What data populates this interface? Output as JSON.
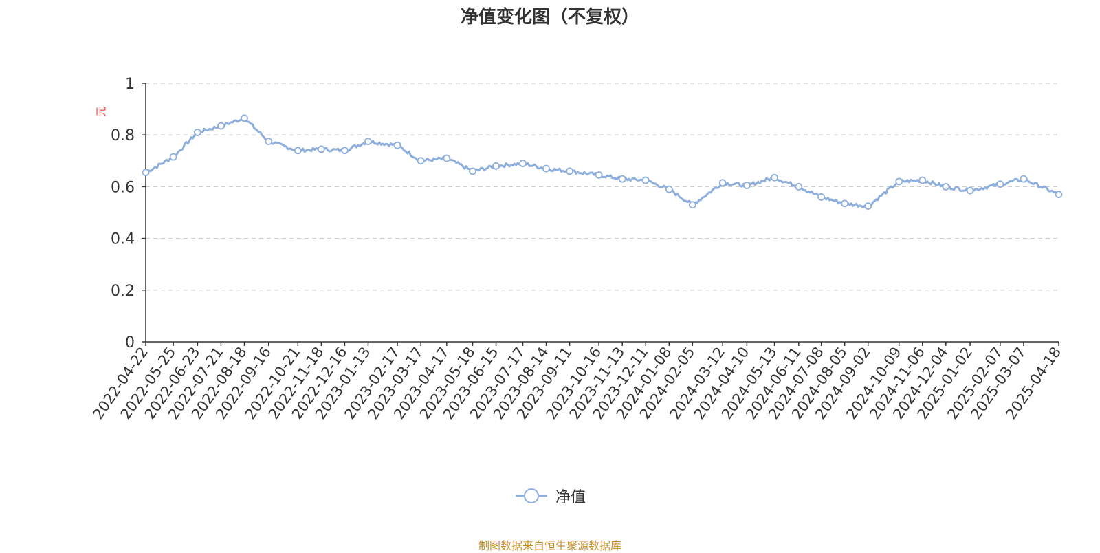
{
  "colors": {
    "line": "#8eaedc",
    "axis": "#333333",
    "grid": "#cccccc",
    "unit": "#e83a3a",
    "title": "#333333",
    "source": "#c8902a"
  },
  "chart_data": {
    "type": "line",
    "title": "净值变化图（不复权）",
    "ylabel": "元",
    "xlabel": "",
    "ylim": [
      0,
      1
    ],
    "yticks": [
      "0",
      "0.2",
      "0.4",
      "0.6",
      "0.8",
      "1"
    ],
    "grid": true,
    "legend_position": "bottom-center",
    "x_ticks": [
      "2022-04-22",
      "2022-05-25",
      "2022-06-23",
      "2022-07-21",
      "2022-08-18",
      "2022-09-16",
      "2022-10-21",
      "2022-11-18",
      "2022-12-16",
      "2023-01-13",
      "2023-02-17",
      "2023-03-17",
      "2023-04-17",
      "2023-05-18",
      "2023-06-15",
      "2023-07-17",
      "2023-08-14",
      "2023-09-11",
      "2023-10-16",
      "2023-11-13",
      "2023-12-11",
      "2024-01-08",
      "2024-02-05",
      "2024-03-12",
      "2024-04-10",
      "2024-05-13",
      "2024-06-11",
      "2024-07-08",
      "2024-08-05",
      "2024-09-02",
      "2024-10-09",
      "2024-11-06",
      "2024-12-04",
      "2025-01-02",
      "2025-02-07",
      "2025-03-07",
      "2025-04-18"
    ],
    "series": [
      {
        "name": "净值",
        "x": [
          "2022-04-22",
          "2022-05-25",
          "2022-06-23",
          "2022-07-21",
          "2022-08-18",
          "2022-09-16",
          "2022-10-21",
          "2022-11-18",
          "2022-12-16",
          "2023-01-13",
          "2023-02-17",
          "2023-03-17",
          "2023-04-17",
          "2023-05-18",
          "2023-06-15",
          "2023-07-17",
          "2023-08-14",
          "2023-09-11",
          "2023-10-16",
          "2023-11-13",
          "2023-12-11",
          "2024-01-08",
          "2024-02-05",
          "2024-03-12",
          "2024-04-10",
          "2024-05-13",
          "2024-06-11",
          "2024-07-08",
          "2024-08-05",
          "2024-09-02",
          "2024-10-09",
          "2024-11-06",
          "2024-12-04",
          "2025-01-02",
          "2025-02-07",
          "2025-03-07",
          "2025-04-18"
        ],
        "values": [
          0.655,
          0.715,
          0.81,
          0.835,
          0.865,
          0.775,
          0.74,
          0.745,
          0.74,
          0.775,
          0.76,
          0.7,
          0.71,
          0.66,
          0.68,
          0.69,
          0.67,
          0.66,
          0.645,
          0.63,
          0.625,
          0.59,
          0.53,
          0.615,
          0.605,
          0.635,
          0.6,
          0.56,
          0.535,
          0.525,
          0.62,
          0.625,
          0.6,
          0.585,
          0.61,
          0.63,
          0.57
        ]
      }
    ]
  },
  "legend": {
    "label": "净值"
  },
  "footer": {
    "source": "制图数据来自恒生聚源数据库"
  }
}
